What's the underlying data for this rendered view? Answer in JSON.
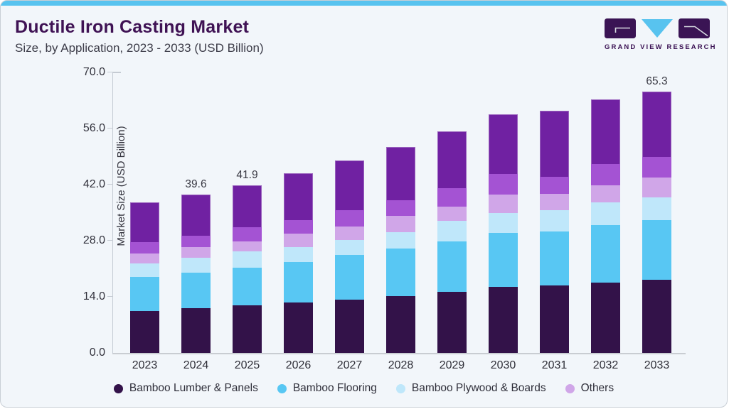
{
  "header": {
    "title": "Ductile Iron Casting Market",
    "subtitle": "Size, by Application, 2023 - 2033 (USD Billion)"
  },
  "logo": {
    "brand": "GRAND VIEW RESEARCH",
    "tile_color": "#3A1454",
    "triangle_color": "#58C3EF",
    "glyph_color": "#D8DCE2"
  },
  "chart_data": {
    "type": "bar",
    "stacked": true,
    "ylabel": "Market Size (USD Billion)",
    "xlabel": "",
    "ylim": [
      0,
      70
    ],
    "ytick_values": [
      0,
      14,
      28,
      42,
      56,
      70
    ],
    "ytick_labels": [
      "0.0",
      "14.0",
      "28.0",
      "42.0",
      "56.0",
      "70.0"
    ],
    "grid": false,
    "legend_position": "bottom",
    "categories": [
      "2023",
      "2024",
      "2025",
      "2026",
      "2027",
      "2028",
      "2029",
      "2030",
      "2031",
      "2032",
      "2033"
    ],
    "series": [
      {
        "name": "Bamboo Lumber & Panels",
        "color": "#331249",
        "in_legend": true,
        "values": [
          10.4,
          11.1,
          11.8,
          12.6,
          13.3,
          14.2,
          15.3,
          16.5,
          16.8,
          17.5,
          18.2
        ]
      },
      {
        "name": "Bamboo Flooring",
        "color": "#58C7F3",
        "in_legend": true,
        "values": [
          8.5,
          9.0,
          9.4,
          10.1,
          11.1,
          11.8,
          12.5,
          13.5,
          13.6,
          14.4,
          15.0
        ]
      },
      {
        "name": "Bamboo Plywood & Boards",
        "color": "#BFE7FA",
        "in_legend": true,
        "values": [
          3.4,
          3.7,
          4.1,
          3.7,
          3.8,
          4.1,
          5.1,
          5.0,
          5.3,
          5.7,
          5.7
        ]
      },
      {
        "name": "Others",
        "color": "#D0A6E8",
        "in_legend": true,
        "values": [
          2.5,
          2.6,
          2.6,
          3.4,
          3.4,
          4.2,
          3.7,
          4.5,
          4.1,
          4.2,
          4.8
        ]
      },
      {
        "name": "Unlabeled (medium purple)",
        "color": "#A453D3",
        "in_legend": false,
        "values": [
          2.8,
          2.8,
          3.4,
          3.3,
          4.0,
          3.8,
          4.6,
          5.2,
          4.2,
          5.3,
          5.3
        ]
      },
      {
        "name": "Unlabeled (top purple)",
        "color": "#7021A2",
        "in_legend": false,
        "values": [
          10.0,
          10.4,
          10.6,
          11.7,
          12.5,
          13.4,
          14.1,
          14.8,
          16.4,
          16.2,
          16.3
        ]
      }
    ],
    "totals": [
      37.6,
      39.6,
      41.9,
      44.8,
      48.1,
      51.5,
      55.3,
      59.5,
      60.4,
      63.3,
      65.3
    ],
    "bar_value_labels": [
      "",
      "39.6",
      "41.9",
      "",
      "",
      "",
      "",
      "",
      "",
      "",
      "65.3"
    ]
  }
}
